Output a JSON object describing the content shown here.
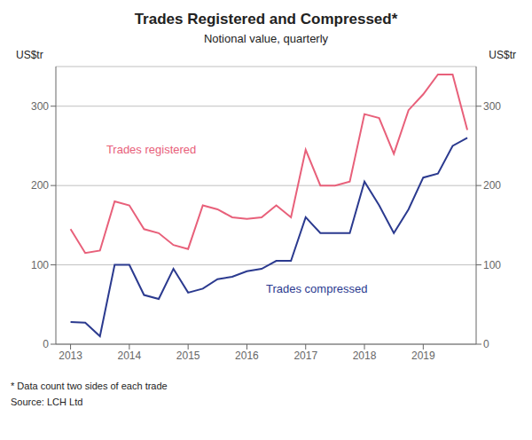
{
  "chart_data": {
    "type": "line",
    "title": "Trades Registered and Compressed*",
    "subtitle": "Notional value,  quarterly",
    "ylabel": "US$tr",
    "y2label": "US$tr",
    "footnote": "*     Data count two sides of each trade",
    "source": "Source:   LCH Ltd",
    "x": [
      2013.0,
      2013.25,
      2013.5,
      2013.75,
      2014.0,
      2014.25,
      2014.5,
      2014.75,
      2015.0,
      2015.25,
      2015.5,
      2015.75,
      2016.0,
      2016.25,
      2016.5,
      2016.75,
      2017.0,
      2017.25,
      2017.5,
      2017.75,
      2018.0,
      2018.25,
      2018.5,
      2018.75,
      2019.0,
      2019.25,
      2019.5,
      2019.75
    ],
    "series": [
      {
        "name": "Trades registered",
        "color": "#e8607a",
        "values": [
          145,
          115,
          118,
          180,
          175,
          145,
          140,
          125,
          120,
          175,
          170,
          160,
          158,
          160,
          175,
          160,
          245,
          200,
          200,
          205,
          290,
          285,
          240,
          295,
          315,
          340,
          340,
          270
        ]
      },
      {
        "name": "Trades compressed",
        "color": "#2b3a8f",
        "values": [
          28,
          27,
          10,
          100,
          100,
          62,
          57,
          95,
          65,
          70,
          82,
          85,
          92,
          95,
          105,
          105,
          160,
          140,
          140,
          140,
          205,
          175,
          140,
          170,
          210,
          215,
          250,
          260
        ]
      }
    ],
    "xlim": [
      2012.75,
      2019.9
    ],
    "xticks": [
      2013,
      2014,
      2015,
      2016,
      2017,
      2018,
      2019
    ],
    "ylim": [
      0,
      350
    ],
    "yticks": [
      0,
      100,
      200,
      300
    ],
    "y2lim": [
      0,
      350
    ],
    "y2ticks": [
      0,
      100,
      200,
      300
    ],
    "grid": "y"
  }
}
